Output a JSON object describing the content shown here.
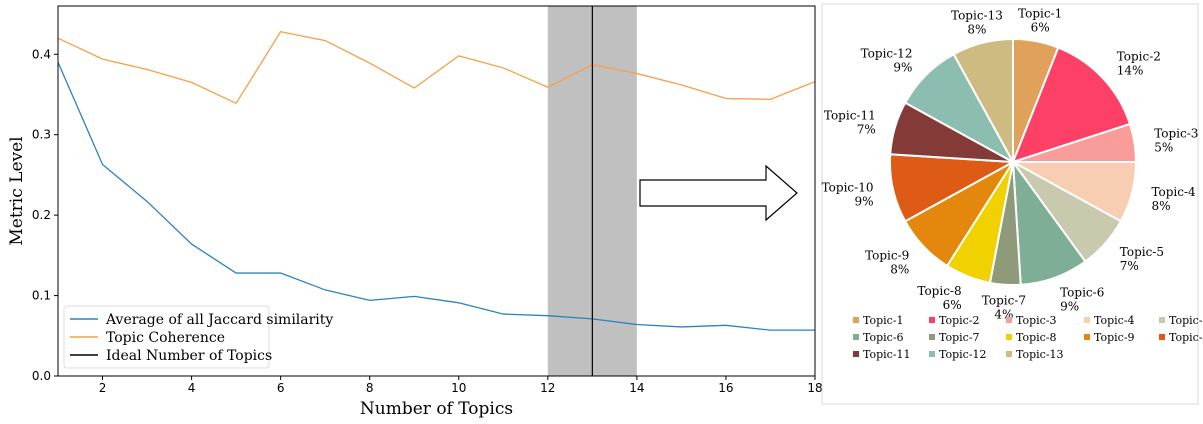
{
  "chart_data": [
    {
      "type": "line",
      "xlabel": "Number of Topics",
      "ylabel": "Metric Level",
      "xlim": [
        1,
        18
      ],
      "ylim": [
        0,
        0.46
      ],
      "xticks": [
        2,
        4,
        6,
        8,
        10,
        12,
        14,
        16,
        18
      ],
      "xtick_labels": [
        "2",
        "4",
        "6",
        "8",
        "10",
        "12",
        "14",
        "16",
        "18"
      ],
      "yticks": [
        0.0,
        0.1,
        0.2,
        0.3,
        0.4
      ],
      "ytick_labels": [
        "0.0",
        "0.1",
        "0.2",
        "0.3",
        "0.4"
      ],
      "x": [
        1,
        2,
        3,
        4,
        5,
        6,
        7,
        8,
        9,
        10,
        11,
        12,
        13,
        14,
        15,
        16,
        17,
        18
      ],
      "series": [
        {
          "name": "Average of all Jaccard similarity",
          "color": "#2b83ba",
          "values": [
            0.39,
            0.263,
            0.217,
            0.164,
            0.128,
            0.128,
            0.107,
            0.094,
            0.099,
            0.091,
            0.077,
            0.075,
            0.071,
            0.064,
            0.061,
            0.063,
            0.057,
            0.057
          ]
        },
        {
          "name": "Topic Coherence",
          "color": "#f5a049",
          "values": [
            0.42,
            0.394,
            0.381,
            0.365,
            0.339,
            0.428,
            0.417,
            0.389,
            0.358,
            0.398,
            0.383,
            0.359,
            0.387,
            0.376,
            0.362,
            0.345,
            0.344,
            0.366
          ]
        }
      ],
      "ideal_line": {
        "name": "Ideal Number of Topics",
        "x": 13,
        "color": "#000000"
      },
      "shaded_band": {
        "x_range": [
          12,
          14
        ],
        "color": "#c0c0c0"
      },
      "legend_position": "bottom-left",
      "grid": false
    },
    {
      "type": "pie",
      "slices": [
        {
          "label": "Topic-1",
          "pct_label": "6%",
          "value": 6,
          "color": "#e0a15a"
        },
        {
          "label": "Topic-2",
          "pct_label": "14%",
          "value": 14,
          "color": "#fd4166"
        },
        {
          "label": "Topic-3",
          "pct_label": "5%",
          "value": 5,
          "color": "#f99d9b"
        },
        {
          "label": "Topic-4",
          "pct_label": "8%",
          "value": 8,
          "color": "#f8ceb2"
        },
        {
          "label": "Topic-5",
          "pct_label": "7%",
          "value": 7,
          "color": "#c9c9ad"
        },
        {
          "label": "Topic-6",
          "pct_label": "9%",
          "value": 9,
          "color": "#7eae96"
        },
        {
          "label": "Topic-7",
          "pct_label": "4%",
          "value": 4,
          "color": "#8e9a7a"
        },
        {
          "label": "Topic-8",
          "pct_label": "6%",
          "value": 6,
          "color": "#f1d200"
        },
        {
          "label": "Topic-9",
          "pct_label": "8%",
          "value": 8,
          "color": "#e4870d"
        },
        {
          "label": "Topic-10",
          "pct_label": "9%",
          "value": 9,
          "color": "#de5b16"
        },
        {
          "label": "Topic-11",
          "pct_label": "7%",
          "value": 7,
          "color": "#843a36"
        },
        {
          "label": "Topic-12",
          "pct_label": "9%",
          "value": 9,
          "color": "#8bbdb0"
        },
        {
          "label": "Topic-13",
          "pct_label": "8%",
          "value": 8,
          "color": "#cdbb82"
        }
      ],
      "legend_position": "bottom"
    }
  ]
}
